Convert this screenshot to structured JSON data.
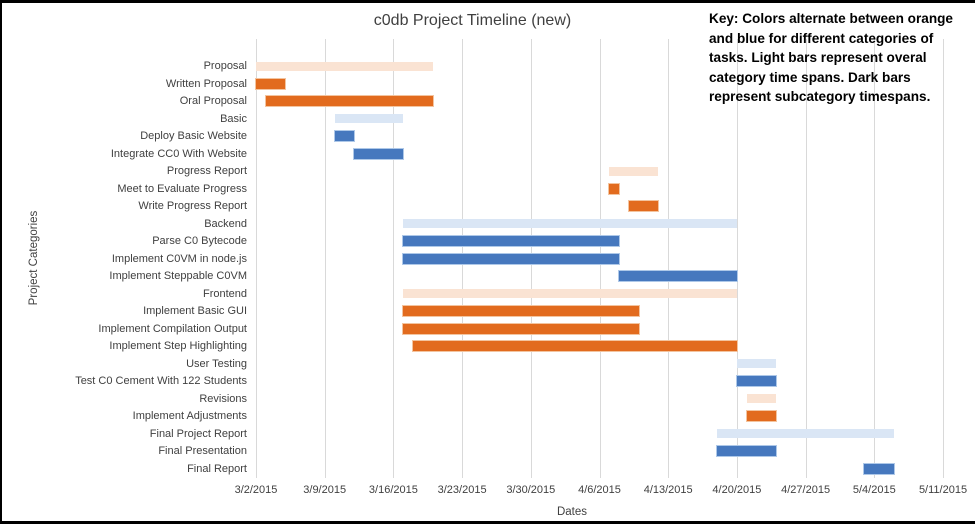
{
  "chart_data": {
    "type": "bar",
    "subtype": "gantt",
    "title": "c0db Project Timeline (new)",
    "xlabel": "Dates",
    "ylabel": "Project Categories",
    "x_range": [
      "3/2/2015",
      "5/11/2015"
    ],
    "x_ticks": [
      "3/2/2015",
      "3/9/2015",
      "3/16/2015",
      "3/23/2015",
      "3/30/2015",
      "4/6/2015",
      "4/13/2015",
      "4/20/2015",
      "4/27/2015",
      "5/4/2015",
      "5/11/2015"
    ],
    "grid": "vertical-weekly",
    "legend_note_lines": [
      "Key: Colors alternate between orange",
      "and blue for different categories of",
      "tasks. Light bars represent overal",
      "category time spans. Dark bars",
      "represent subcategory timespans."
    ],
    "colors": {
      "orange_dark": "#E26B1E",
      "orange_dark_edge": "#F3C49F",
      "orange_light": "#FAE3D3",
      "blue_dark": "#4678BE",
      "blue_dark_edge": "#AEC8E8",
      "blue_light": "#DAE6F5",
      "gridline": "#D9D9D9",
      "text": "#404040"
    },
    "tasks": [
      {
        "label": "Proposal",
        "start": "3/2/2015",
        "end": "3/20/2015",
        "style": "orange-light",
        "kind": "category"
      },
      {
        "label": "Written Proposal",
        "start": "3/2/2015",
        "end": "3/5/2015",
        "style": "orange-dark",
        "kind": "subtask"
      },
      {
        "label": "Oral Proposal",
        "start": "3/3/2015",
        "end": "3/20/2015",
        "style": "orange-dark",
        "kind": "subtask"
      },
      {
        "label": "Basic",
        "start": "3/10/2015",
        "end": "3/17/2015",
        "style": "blue-light",
        "kind": "category"
      },
      {
        "label": "Deploy Basic Website",
        "start": "3/10/2015",
        "end": "3/12/2015",
        "style": "blue-dark",
        "kind": "subtask"
      },
      {
        "label": "Integrate CC0 With Website",
        "start": "3/12/2015",
        "end": "3/17/2015",
        "style": "blue-dark",
        "kind": "subtask"
      },
      {
        "label": "Progress Report",
        "start": "4/7/2015",
        "end": "4/12/2015",
        "style": "orange-light",
        "kind": "category"
      },
      {
        "label": "Meet to Evaluate Progress",
        "start": "4/7/2015",
        "end": "4/8/2015",
        "style": "orange-dark",
        "kind": "subtask"
      },
      {
        "label": "Write Progress Report",
        "start": "4/9/2015",
        "end": "4/12/2015",
        "style": "orange-dark",
        "kind": "subtask"
      },
      {
        "label": "Backend",
        "start": "3/17/2015",
        "end": "4/20/2015",
        "style": "blue-light",
        "kind": "category"
      },
      {
        "label": "Parse C0 Bytecode",
        "start": "3/17/2015",
        "end": "4/8/2015",
        "style": "blue-dark",
        "kind": "subtask"
      },
      {
        "label": "Implement C0VM in node.js",
        "start": "3/17/2015",
        "end": "4/8/2015",
        "style": "blue-dark",
        "kind": "subtask"
      },
      {
        "label": "Implement Steppable C0VM",
        "start": "4/8/2015",
        "end": "4/20/2015",
        "style": "blue-dark",
        "kind": "subtask"
      },
      {
        "label": "Frontend",
        "start": "3/17/2015",
        "end": "4/20/2015",
        "style": "orange-light",
        "kind": "category"
      },
      {
        "label": "Implement Basic GUI",
        "start": "3/17/2015",
        "end": "4/10/2015",
        "style": "orange-dark",
        "kind": "subtask"
      },
      {
        "label": "Implement Compilation Output",
        "start": "3/17/2015",
        "end": "4/10/2015",
        "style": "orange-dark",
        "kind": "subtask"
      },
      {
        "label": "Implement Step Highlighting",
        "start": "3/18/2015",
        "end": "4/20/2015",
        "style": "orange-dark",
        "kind": "subtask"
      },
      {
        "label": "User Testing",
        "start": "4/20/2015",
        "end": "4/24/2015",
        "style": "blue-light",
        "kind": "category"
      },
      {
        "label": "Test C0 Cement With 122 Students",
        "start": "4/20/2015",
        "end": "4/24/2015",
        "style": "blue-dark",
        "kind": "subtask"
      },
      {
        "label": "Revisions",
        "start": "4/21/2015",
        "end": "4/24/2015",
        "style": "orange-light",
        "kind": "category"
      },
      {
        "label": "Implement Adjustments",
        "start": "4/21/2015",
        "end": "4/24/2015",
        "style": "orange-dark",
        "kind": "subtask"
      },
      {
        "label": "Final Project Report",
        "start": "4/18/2015",
        "end": "5/6/2015",
        "style": "blue-light",
        "kind": "category"
      },
      {
        "label": "Final Presentation",
        "start": "4/18/2015",
        "end": "4/24/2015",
        "style": "blue-dark",
        "kind": "subtask"
      },
      {
        "label": "Final Report",
        "start": "5/3/2015",
        "end": "5/6/2015",
        "style": "blue-dark",
        "kind": "subtask"
      }
    ]
  }
}
